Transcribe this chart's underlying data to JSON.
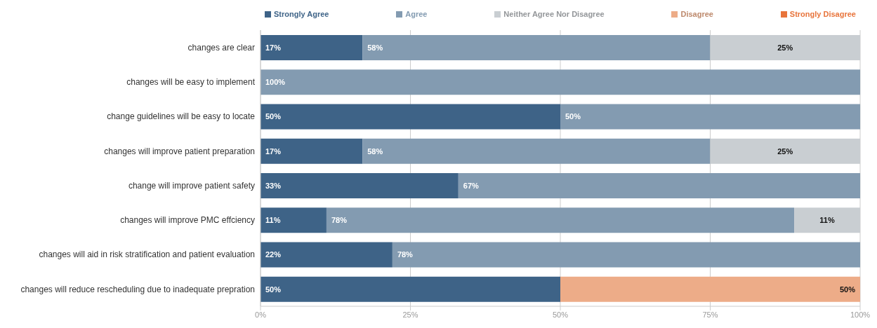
{
  "chart_data": {
    "type": "bar",
    "orientation": "horizontal",
    "stacked": true,
    "categories": [
      "changes are clear",
      "changes will be easy to implement",
      "change guidelines will be easy to locate",
      "changes will improve patient preparation",
      "change will improve patient safety",
      "changes will improve PMC effciency",
      "changes will aid in risk stratification and patient evaluation",
      "changes will reduce rescheduling due to inadequate prepration"
    ],
    "series": [
      {
        "name": "Strongly Agree",
        "color": "#3e6387",
        "values": [
          17,
          null,
          50,
          17,
          33,
          11,
          22,
          50
        ],
        "value_labels": [
          "17%",
          null,
          "50%",
          "17%",
          "33%",
          "11%",
          "22%",
          "50%"
        ]
      },
      {
        "name": "Agree",
        "color": "#839bb1",
        "values": [
          58,
          100,
          50,
          58,
          67,
          78,
          78,
          null
        ],
        "value_labels": [
          "58%",
          "100%",
          "50%",
          "58%",
          "67%",
          "78%",
          "78%",
          null
        ]
      },
      {
        "name": "Neither Agree Nor Disagree",
        "color": "#c9ced2",
        "values": [
          25,
          null,
          null,
          25,
          null,
          11,
          null,
          null
        ],
        "value_labels": [
          "25%",
          null,
          null,
          "25%",
          null,
          "11%",
          null,
          null
        ]
      },
      {
        "name": "Disagree",
        "color": "#edac88",
        "values": [
          null,
          null,
          null,
          null,
          null,
          null,
          null,
          50
        ],
        "value_labels": [
          null,
          null,
          null,
          null,
          null,
          null,
          null,
          "50%"
        ]
      },
      {
        "name": "Strongly Disagree",
        "color": "#e8743b",
        "values": [
          null,
          null,
          null,
          null,
          null,
          null,
          null,
          null
        ]
      }
    ],
    "xlim": [
      0,
      100
    ],
    "xticks": [
      {
        "value": 0,
        "label": "0%"
      },
      {
        "value": 25,
        "label": "25%"
      },
      {
        "value": 50,
        "label": "50%"
      },
      {
        "value": 75,
        "label": "75%"
      },
      {
        "value": 100,
        "label": "100%"
      }
    ],
    "grid": "x",
    "legend": "top"
  }
}
